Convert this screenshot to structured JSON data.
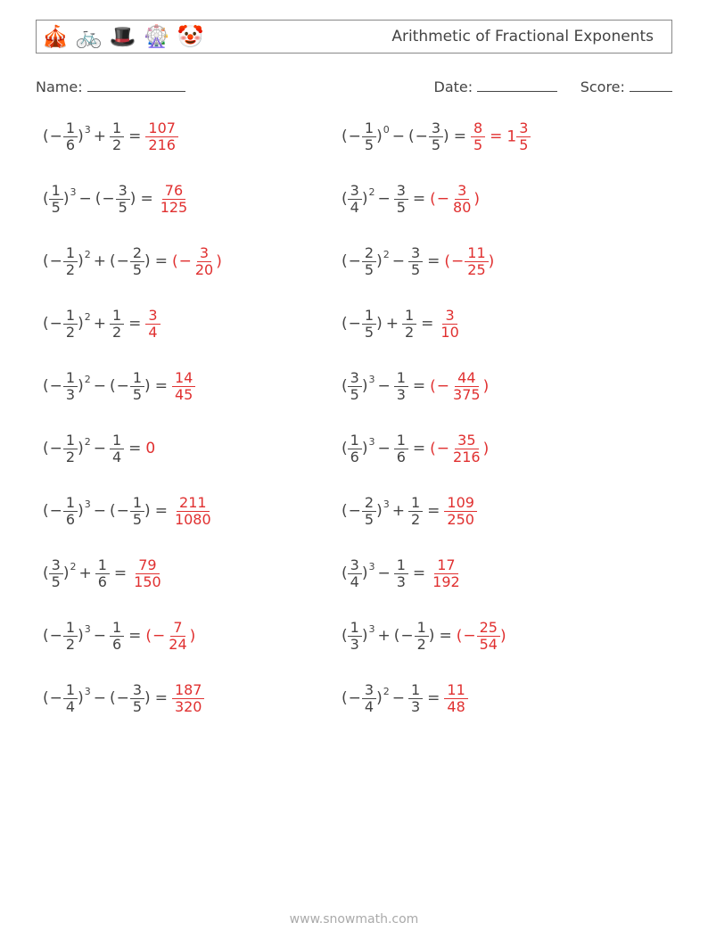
{
  "header": {
    "icons": [
      "🎪",
      "🚲",
      "🎩",
      "🎡",
      "🤡"
    ],
    "title": "Arithmetic of Fractional Exponents"
  },
  "meta": {
    "name_label": "Name:",
    "name_blank_width": 110,
    "date_label": "Date:",
    "date_blank_width": 90,
    "score_label": "Score:",
    "score_blank_width": 48
  },
  "answer_color": "#e03030",
  "problems": [
    {
      "base": {
        "n": "1",
        "d": "6",
        "neg": true
      },
      "exp": "3",
      "op": "+",
      "second": {
        "type": "frac",
        "n": "1",
        "d": "2",
        "neg": false
      },
      "answers": [
        {
          "type": "frac",
          "n": "107",
          "d": "216"
        }
      ]
    },
    {
      "base": {
        "n": "1",
        "d": "5",
        "neg": true
      },
      "exp": "0",
      "op": "−",
      "second": {
        "type": "pfrac",
        "n": "3",
        "d": "5",
        "neg": true
      },
      "answers": [
        {
          "type": "frac",
          "n": "8",
          "d": "5"
        },
        {
          "type": "mixed",
          "whole": "1",
          "n": "3",
          "d": "5"
        }
      ]
    },
    {
      "base": {
        "n": "1",
        "d": "5",
        "neg": false
      },
      "exp": "3",
      "op": "−",
      "second": {
        "type": "pfrac",
        "n": "3",
        "d": "5",
        "neg": true
      },
      "answers": [
        {
          "type": "frac",
          "n": "76",
          "d": "125"
        }
      ]
    },
    {
      "base": {
        "n": "3",
        "d": "4",
        "neg": false
      },
      "exp": "2",
      "op": "−",
      "second": {
        "type": "frac",
        "n": "3",
        "d": "5",
        "neg": false
      },
      "answers": [
        {
          "type": "negpfrac",
          "n": "3",
          "d": "80"
        }
      ]
    },
    {
      "base": {
        "n": "1",
        "d": "2",
        "neg": true
      },
      "exp": "2",
      "op": "+",
      "second": {
        "type": "pfrac",
        "n": "2",
        "d": "5",
        "neg": true
      },
      "answers": [
        {
          "type": "negpfrac",
          "n": "3",
          "d": "20"
        }
      ]
    },
    {
      "base": {
        "n": "2",
        "d": "5",
        "neg": true
      },
      "exp": "2",
      "op": "−",
      "second": {
        "type": "frac",
        "n": "3",
        "d": "5",
        "neg": false
      },
      "answers": [
        {
          "type": "negpfrac",
          "n": "11",
          "d": "25"
        }
      ]
    },
    {
      "base": {
        "n": "1",
        "d": "2",
        "neg": true
      },
      "exp": "2",
      "op": "+",
      "second": {
        "type": "frac",
        "n": "1",
        "d": "2",
        "neg": false
      },
      "answers": [
        {
          "type": "frac",
          "n": "3",
          "d": "4"
        }
      ]
    },
    {
      "base": {
        "n": "1",
        "d": "5",
        "neg": true
      },
      "exp": "",
      "op": "+",
      "second": {
        "type": "frac",
        "n": "1",
        "d": "2",
        "neg": false
      },
      "answers": [
        {
          "type": "frac",
          "n": "3",
          "d": "10"
        }
      ]
    },
    {
      "base": {
        "n": "1",
        "d": "3",
        "neg": true
      },
      "exp": "2",
      "op": "−",
      "second": {
        "type": "pfrac",
        "n": "1",
        "d": "5",
        "neg": true
      },
      "answers": [
        {
          "type": "frac",
          "n": "14",
          "d": "45"
        }
      ]
    },
    {
      "base": {
        "n": "3",
        "d": "5",
        "neg": false
      },
      "exp": "3",
      "op": "−",
      "second": {
        "type": "frac",
        "n": "1",
        "d": "3",
        "neg": false
      },
      "answers": [
        {
          "type": "negpfrac",
          "n": "44",
          "d": "375"
        }
      ]
    },
    {
      "base": {
        "n": "1",
        "d": "2",
        "neg": true
      },
      "exp": "2",
      "op": "−",
      "second": {
        "type": "frac",
        "n": "1",
        "d": "4",
        "neg": false
      },
      "answers": [
        {
          "type": "text",
          "text": "0"
        }
      ]
    },
    {
      "base": {
        "n": "1",
        "d": "6",
        "neg": false
      },
      "exp": "3",
      "op": "−",
      "second": {
        "type": "frac",
        "n": "1",
        "d": "6",
        "neg": false
      },
      "answers": [
        {
          "type": "negpfrac",
          "n": "35",
          "d": "216"
        }
      ]
    },
    {
      "base": {
        "n": "1",
        "d": "6",
        "neg": true
      },
      "exp": "3",
      "op": "−",
      "second": {
        "type": "pfrac",
        "n": "1",
        "d": "5",
        "neg": true
      },
      "answers": [
        {
          "type": "frac",
          "n": "211",
          "d": "1080"
        }
      ]
    },
    {
      "base": {
        "n": "2",
        "d": "5",
        "neg": true
      },
      "exp": "3",
      "op": "+",
      "second": {
        "type": "frac",
        "n": "1",
        "d": "2",
        "neg": false
      },
      "answers": [
        {
          "type": "frac",
          "n": "109",
          "d": "250"
        }
      ]
    },
    {
      "base": {
        "n": "3",
        "d": "5",
        "neg": false
      },
      "exp": "2",
      "op": "+",
      "second": {
        "type": "frac",
        "n": "1",
        "d": "6",
        "neg": false
      },
      "answers": [
        {
          "type": "frac",
          "n": "79",
          "d": "150"
        }
      ]
    },
    {
      "base": {
        "n": "3",
        "d": "4",
        "neg": false
      },
      "exp": "3",
      "op": "−",
      "second": {
        "type": "frac",
        "n": "1",
        "d": "3",
        "neg": false
      },
      "answers": [
        {
          "type": "frac",
          "n": "17",
          "d": "192"
        }
      ]
    },
    {
      "base": {
        "n": "1",
        "d": "2",
        "neg": true
      },
      "exp": "3",
      "op": "−",
      "second": {
        "type": "frac",
        "n": "1",
        "d": "6",
        "neg": false
      },
      "answers": [
        {
          "type": "negpfrac",
          "n": "7",
          "d": "24"
        }
      ]
    },
    {
      "base": {
        "n": "1",
        "d": "3",
        "neg": false
      },
      "exp": "3",
      "op": "+",
      "second": {
        "type": "pfrac",
        "n": "1",
        "d": "2",
        "neg": true
      },
      "answers": [
        {
          "type": "negpfrac",
          "n": "25",
          "d": "54"
        }
      ]
    },
    {
      "base": {
        "n": "1",
        "d": "4",
        "neg": true
      },
      "exp": "3",
      "op": "−",
      "second": {
        "type": "pfrac",
        "n": "3",
        "d": "5",
        "neg": true
      },
      "answers": [
        {
          "type": "frac",
          "n": "187",
          "d": "320"
        }
      ]
    },
    {
      "base": {
        "n": "3",
        "d": "4",
        "neg": true
      },
      "exp": "2",
      "op": "−",
      "second": {
        "type": "frac",
        "n": "1",
        "d": "3",
        "neg": false
      },
      "answers": [
        {
          "type": "frac",
          "n": "11",
          "d": "48"
        }
      ]
    }
  ],
  "footer": "www.snowmath.com"
}
